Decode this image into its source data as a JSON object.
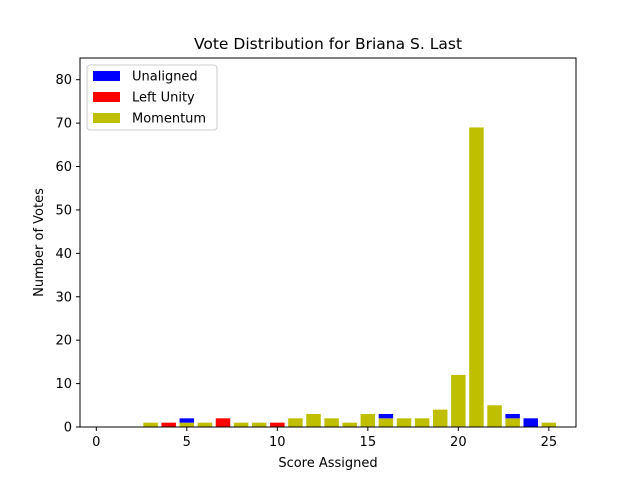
{
  "chart_data": {
    "type": "bar",
    "stacked": true,
    "title": "Vote Distribution for Briana S. Last",
    "xlabel": "Score Assigned",
    "ylabel": "Number of Votes",
    "xlim": [
      -0.9,
      26.5
    ],
    "ylim": [
      0,
      85
    ],
    "xticks": [
      0,
      5,
      10,
      15,
      20,
      25
    ],
    "yticks": [
      0,
      10,
      20,
      30,
      40,
      50,
      60,
      70,
      80
    ],
    "grid": false,
    "legend_position": "top-left",
    "x": [
      0,
      1,
      2,
      3,
      4,
      5,
      6,
      7,
      8,
      9,
      10,
      11,
      12,
      13,
      14,
      15,
      16,
      17,
      18,
      19,
      20,
      21,
      22,
      23,
      24,
      25
    ],
    "series": [
      {
        "name": "Momentum",
        "color": "#bfbf00",
        "values": [
          0,
          0,
          0,
          1,
          0,
          1,
          1,
          0,
          1,
          1,
          0,
          2,
          3,
          2,
          1,
          3,
          2,
          2,
          2,
          4,
          12,
          69,
          5,
          2,
          0,
          1
        ]
      },
      {
        "name": "Left Unity",
        "color": "#ff0000",
        "values": [
          0,
          0,
          0,
          0,
          1,
          0,
          0,
          2,
          0,
          0,
          1,
          0,
          0,
          0,
          0,
          0,
          0,
          0,
          0,
          0,
          0,
          0,
          0,
          0,
          0,
          0
        ]
      },
      {
        "name": "Unaligned",
        "color": "#0000ff",
        "values": [
          0,
          0,
          0,
          0,
          0,
          1,
          0,
          0,
          0,
          0,
          0,
          0,
          0,
          0,
          0,
          0,
          1,
          0,
          0,
          0,
          0,
          0,
          0,
          1,
          2,
          0
        ]
      }
    ],
    "legend_order": [
      "Unaligned",
      "Left Unity",
      "Momentum"
    ]
  }
}
